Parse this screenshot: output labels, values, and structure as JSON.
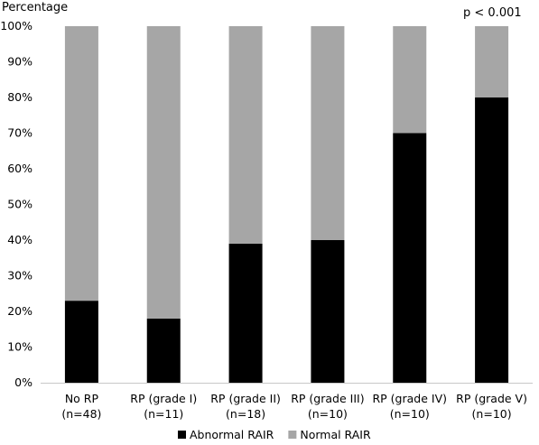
{
  "chart_data": {
    "type": "bar",
    "stacked": true,
    "title": "",
    "ylabel": "Percentage",
    "annotation": "p < 0.001",
    "ylim": [
      0,
      100
    ],
    "y_ticks": [
      "0%",
      "10%",
      "20%",
      "30%",
      "40%",
      "50%",
      "60%",
      "70%",
      "80%",
      "90%",
      "100%"
    ],
    "categories": [
      [
        "No RP",
        "(n=48)"
      ],
      [
        "RP (grade I)",
        "(n=11)"
      ],
      [
        "RP (grade II)",
        "(n=18)"
      ],
      [
        "RP (grade III)",
        "(n=10)"
      ],
      [
        "RP (grade IV)",
        "(n=10)"
      ],
      [
        "RP (grade V)",
        "(n=10)"
      ]
    ],
    "series": [
      {
        "name": "Abnormal RAIR",
        "color": "#000000",
        "values": [
          23,
          18,
          39,
          40,
          70,
          80
        ]
      },
      {
        "name": "Normal RAIR",
        "color": "#a6a6a6",
        "values": [
          77,
          82,
          61,
          60,
          30,
          20
        ]
      }
    ],
    "legend_position": "bottom",
    "grid": false
  }
}
